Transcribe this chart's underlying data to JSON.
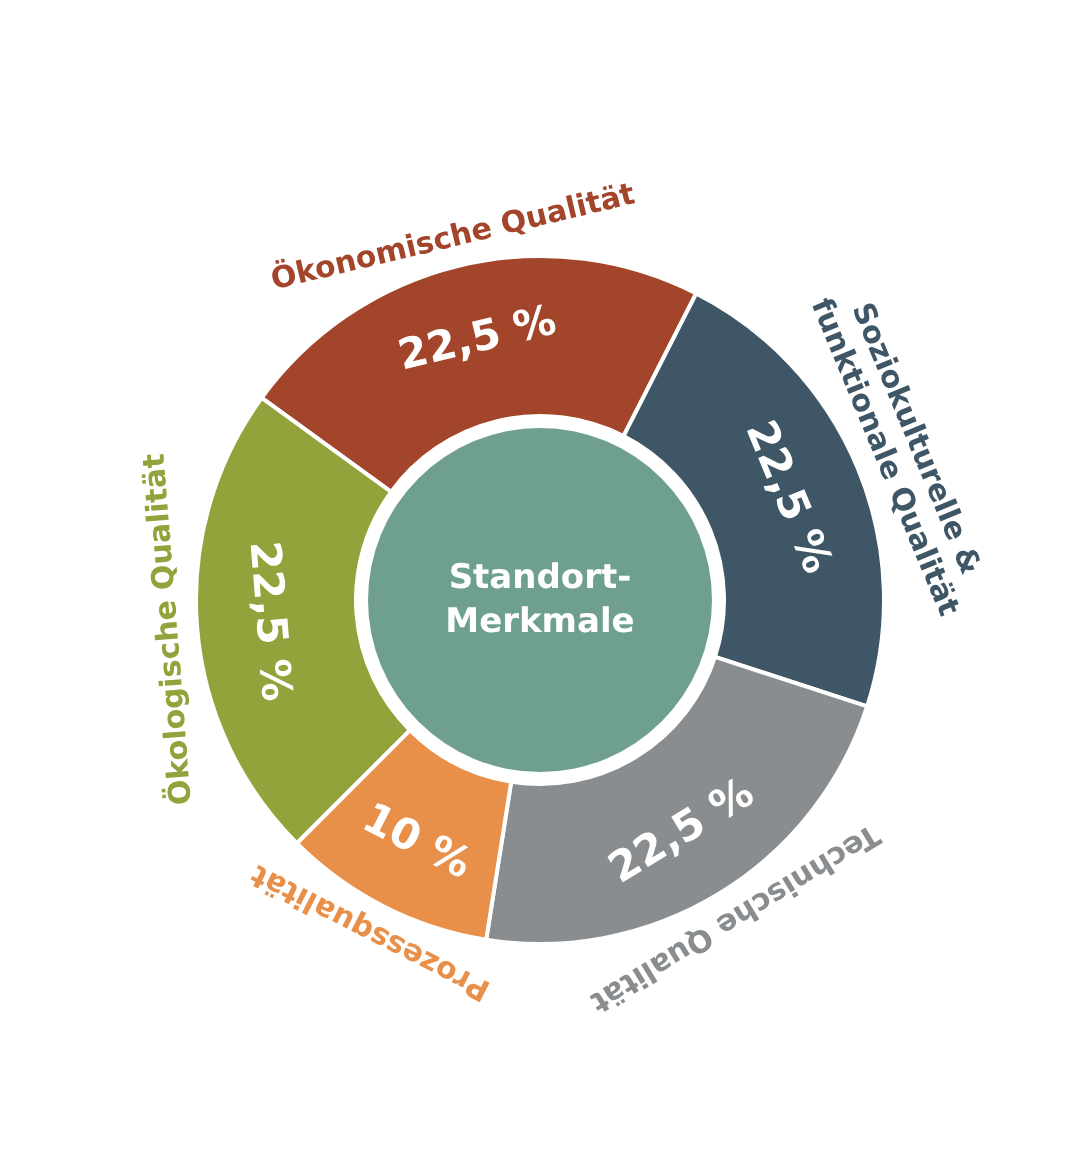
{
  "chart_data": {
    "type": "donut",
    "annotations": [
      "Standort-Merkmale"
    ],
    "categories": [
      "Ökonomische Qualität",
      "Soziokulturelle & funktionale Qualität",
      "Technische Qualität",
      "Prozessqualität",
      "Ökologische Qualität"
    ],
    "values": [
      22.5,
      22.5,
      22.5,
      10,
      22.5
    ],
    "value_labels": [
      "22,5 %",
      "22,5 %",
      "22,5 %",
      "10 %",
      "22,5 %"
    ],
    "colors": [
      "#a3452a",
      "#3f5666",
      "#8a8d8f",
      "#e8904a",
      "#93a23a"
    ],
    "legend": false
  }
}
